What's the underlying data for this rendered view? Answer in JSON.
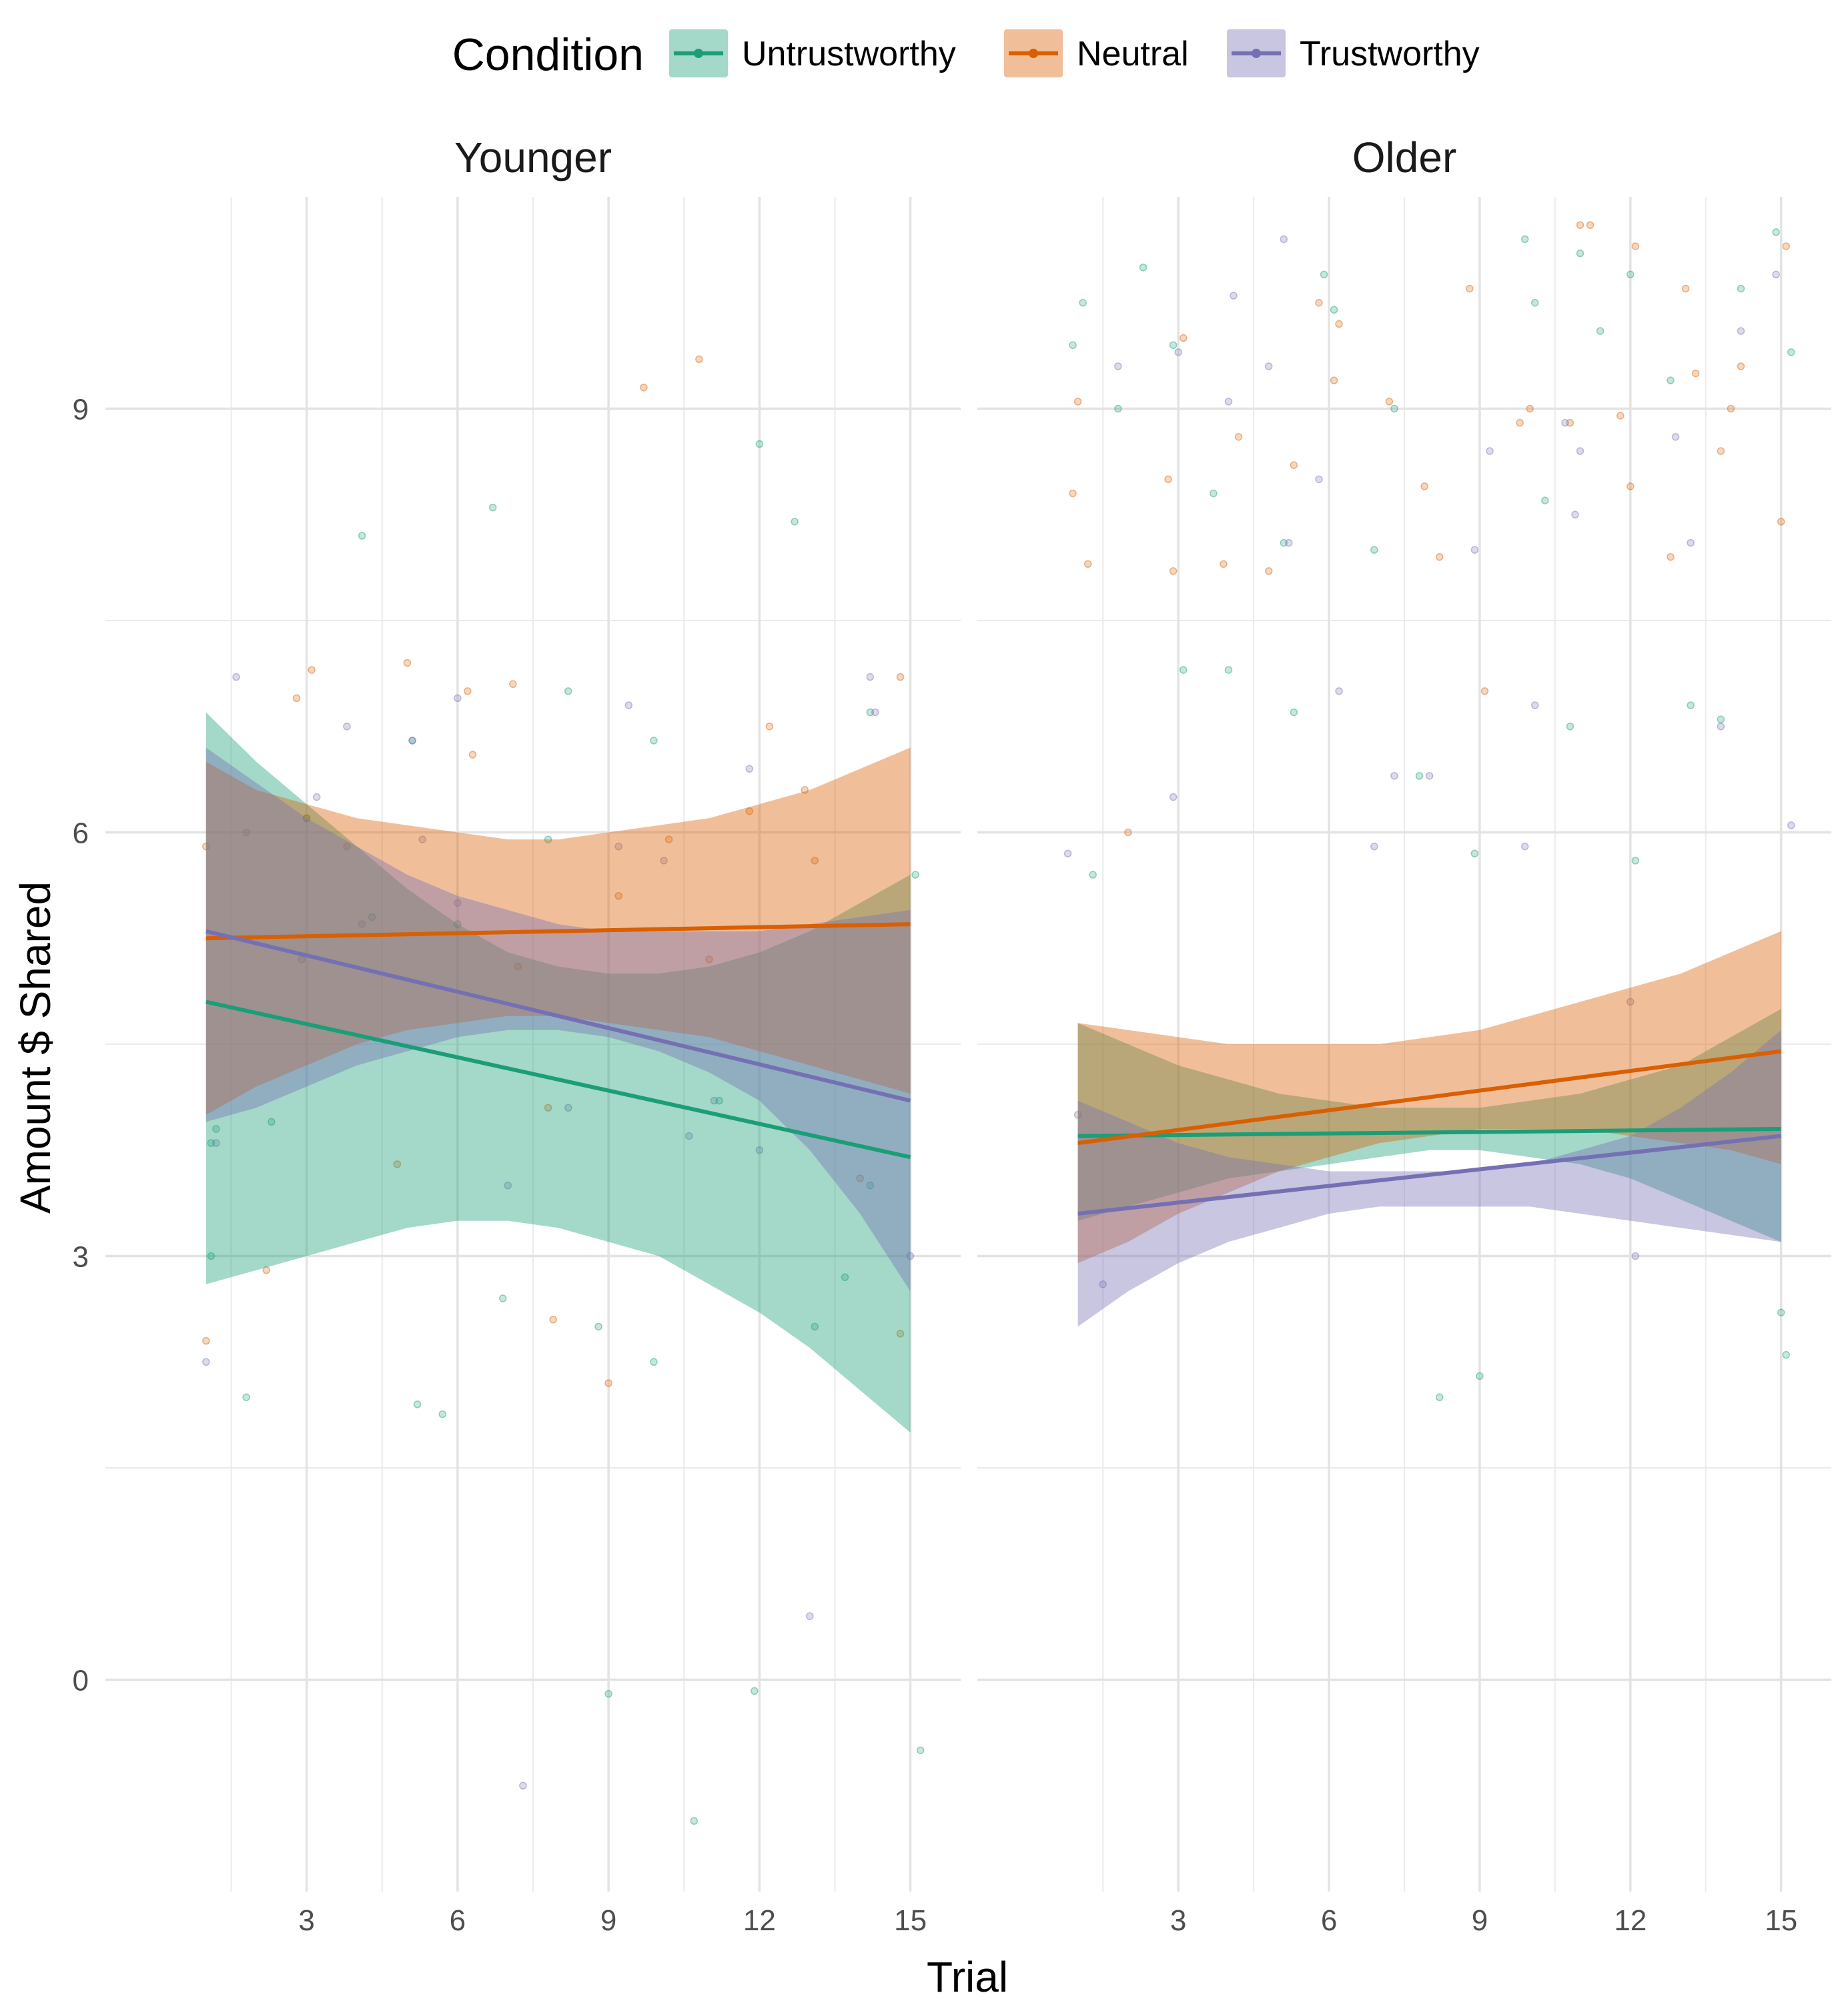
{
  "chart_data": {
    "type": "scatter",
    "xlabel": "Trial",
    "ylabel": "Amount $ Shared",
    "x_ticks": [
      3,
      6,
      9,
      12,
      15
    ],
    "y_ticks": [
      0,
      3,
      6,
      9
    ],
    "xlim": [
      -1.0,
      16.0
    ],
    "ylim": [
      -1.5,
      10.5
    ],
    "grid": true,
    "legend": {
      "title": "Condition",
      "position": "top",
      "entries": [
        {
          "name": "Untrustworthy",
          "color": "#1b9e77"
        },
        {
          "name": "Neutral",
          "color": "#d95f02"
        },
        {
          "name": "Trustworthy",
          "color": "#7570b3"
        }
      ]
    },
    "panels": [
      {
        "name": "Younger",
        "fits": [
          {
            "series": "Untrustworthy",
            "x": [
              1,
              15
            ],
            "y": [
              4.8,
              3.7
            ]
          },
          {
            "series": "Neutral",
            "x": [
              1,
              15
            ],
            "y": [
              5.25,
              5.35
            ]
          },
          {
            "series": "Trustworthy",
            "x": [
              1,
              15
            ],
            "y": [
              5.3,
              4.1
            ]
          }
        ],
        "bands": [
          {
            "series": "Untrustworthy",
            "x": [
              1,
              2,
              3,
              4,
              5,
              6,
              7,
              8,
              9,
              10,
              11,
              12,
              13,
              14,
              15
            ],
            "lower": [
              2.8,
              2.9,
              3.0,
              3.1,
              3.2,
              3.25,
              3.25,
              3.2,
              3.1,
              3.0,
              2.8,
              2.6,
              2.35,
              2.05,
              1.75
            ],
            "upper": [
              6.85,
              6.5,
              6.2,
              5.9,
              5.6,
              5.35,
              5.15,
              5.05,
              5.0,
              5.0,
              5.05,
              5.15,
              5.3,
              5.5,
              5.7
            ]
          },
          {
            "series": "Neutral",
            "x": [
              1,
              2,
              3,
              4,
              5,
              6,
              7,
              8,
              9,
              10,
              11,
              12,
              13,
              14,
              15
            ],
            "lower": [
              4.0,
              4.2,
              4.35,
              4.5,
              4.6,
              4.65,
              4.7,
              4.7,
              4.65,
              4.6,
              4.55,
              4.45,
              4.35,
              4.25,
              4.15
            ],
            "upper": [
              6.5,
              6.3,
              6.2,
              6.1,
              6.05,
              6.0,
              5.95,
              5.95,
              6.0,
              6.05,
              6.1,
              6.2,
              6.3,
              6.45,
              6.6
            ]
          },
          {
            "series": "Trustworthy",
            "x": [
              1,
              2,
              3,
              4,
              5,
              6,
              7,
              8,
              9,
              10,
              11,
              12,
              13,
              14,
              15
            ],
            "lower": [
              3.95,
              4.05,
              4.2,
              4.35,
              4.45,
              4.55,
              4.6,
              4.6,
              4.55,
              4.45,
              4.3,
              4.1,
              3.75,
              3.3,
              2.75
            ],
            "upper": [
              6.6,
              6.35,
              6.1,
              5.9,
              5.7,
              5.55,
              5.45,
              5.35,
              5.3,
              5.3,
              5.3,
              5.3,
              5.35,
              5.4,
              5.45
            ]
          }
        ],
        "points": [
          {
            "series": "Untrustworthy",
            "x": [
              1.1,
              1.1,
              1.2,
              1.8,
              2.3,
              3.0,
              4.1,
              4.3,
              5.1,
              5.2,
              5.7,
              6.0,
              6.7,
              6.9,
              7.8,
              8.2,
              8.8,
              9.0,
              9.9,
              9.9,
              10.7,
              11.2,
              11.9,
              12.0,
              12.7,
              13.1,
              13.7,
              14.2,
              14.2,
              15.1,
              15.2
            ],
            "y": [
              3.8,
              3.0,
              3.9,
              2.0,
              3.95,
              6.1,
              8.1,
              5.4,
              6.65,
              1.95,
              1.88,
              5.35,
              8.3,
              2.7,
              5.95,
              7.0,
              2.5,
              -0.1,
              6.65,
              2.25,
              -1.0,
              4.1,
              -0.08,
              8.75,
              8.2,
              2.5,
              2.85,
              3.5,
              6.85,
              5.7,
              -0.5
            ]
          },
          {
            "series": "Neutral",
            "x": [
              1.0,
              1.0,
              2.2,
              2.8,
              3.0,
              3.1,
              3.8,
              4.8,
              5.0,
              6.2,
              6.3,
              7.1,
              7.2,
              7.8,
              7.9,
              9.0,
              9.2,
              9.7,
              10.2,
              10.8,
              11.0,
              11.8,
              12.2,
              12.9,
              13.1,
              14.0,
              14.8,
              14.8
            ],
            "y": [
              2.4,
              5.9,
              2.9,
              6.95,
              6.1,
              7.15,
              5.9,
              3.65,
              7.2,
              7.0,
              6.55,
              7.05,
              5.05,
              4.05,
              2.55,
              2.1,
              5.55,
              9.15,
              5.95,
              9.35,
              5.1,
              6.15,
              6.75,
              6.3,
              5.8,
              3.55,
              7.1,
              2.45
            ]
          },
          {
            "series": "Trustworthy",
            "x": [
              1.0,
              1.2,
              1.6,
              1.8,
              2.9,
              3.2,
              3.8,
              4.1,
              5.1,
              5.3,
              6.0,
              6.0,
              7.0,
              7.3,
              8.2,
              9.2,
              9.4,
              10.1,
              10.6,
              11.1,
              11.8,
              12.0,
              13.0,
              14.2,
              14.3,
              15.0
            ],
            "y": [
              2.25,
              3.8,
              7.1,
              6.0,
              5.1,
              6.25,
              6.75,
              5.35,
              6.65,
              5.95,
              6.95,
              5.5,
              3.5,
              -0.75,
              4.05,
              5.9,
              6.9,
              5.8,
              3.85,
              4.1,
              6.45,
              3.75,
              0.45,
              7.1,
              6.85,
              3.0
            ]
          }
        ]
      },
      {
        "name": "Older",
        "fits": [
          {
            "series": "Untrustworthy",
            "x": [
              1,
              15
            ],
            "y": [
              3.85,
              3.9
            ]
          },
          {
            "series": "Neutral",
            "x": [
              1,
              15
            ],
            "y": [
              3.8,
              4.45
            ]
          },
          {
            "series": "Trustworthy",
            "x": [
              1,
              15
            ],
            "y": [
              3.3,
              3.85
            ]
          }
        ],
        "bands": [
          {
            "series": "Untrustworthy",
            "x": [
              1,
              2,
              3,
              4,
              5,
              6,
              7,
              8,
              9,
              10,
              11,
              12,
              13,
              14,
              15
            ],
            "lower": [
              3.25,
              3.35,
              3.45,
              3.55,
              3.6,
              3.65,
              3.7,
              3.75,
              3.75,
              3.7,
              3.65,
              3.55,
              3.4,
              3.25,
              3.1
            ],
            "upper": [
              4.65,
              4.5,
              4.35,
              4.25,
              4.15,
              4.1,
              4.05,
              4.05,
              4.05,
              4.1,
              4.15,
              4.25,
              4.35,
              4.55,
              4.75
            ]
          },
          {
            "series": "Neutral",
            "x": [
              1,
              2,
              3,
              4,
              5,
              6,
              7,
              8,
              9,
              10,
              11,
              12,
              13,
              14,
              15
            ],
            "lower": [
              2.95,
              3.1,
              3.3,
              3.45,
              3.6,
              3.7,
              3.8,
              3.85,
              3.9,
              3.9,
              3.9,
              3.85,
              3.8,
              3.75,
              3.65
            ],
            "upper": [
              4.65,
              4.6,
              4.55,
              4.5,
              4.5,
              4.5,
              4.5,
              4.55,
              4.6,
              4.7,
              4.8,
              4.9,
              5.0,
              5.15,
              5.3
            ]
          },
          {
            "series": "Trustworthy",
            "x": [
              1,
              2,
              3,
              4,
              5,
              6,
              7,
              8,
              9,
              10,
              11,
              12,
              13,
              14,
              15
            ],
            "lower": [
              2.5,
              2.75,
              2.95,
              3.1,
              3.2,
              3.3,
              3.35,
              3.35,
              3.35,
              3.35,
              3.3,
              3.25,
              3.2,
              3.15,
              3.1
            ],
            "upper": [
              4.1,
              3.95,
              3.8,
              3.7,
              3.65,
              3.6,
              3.6,
              3.6,
              3.6,
              3.65,
              3.75,
              3.85,
              4.05,
              4.3,
              4.6
            ]
          }
        ],
        "points": [
          {
            "series": "Untrustworthy",
            "x": [
              0.9,
              1.1,
              1.3,
              1.8,
              2.3,
              2.9,
              3.1,
              3.7,
              4.0,
              5.1,
              5.3,
              5.9,
              6.1,
              6.9,
              7.3,
              7.8,
              8.2,
              8.9,
              9.0,
              9.9,
              10.1,
              10.3,
              10.8,
              11.0,
              11.4,
              12.0,
              12.1,
              12.8,
              13.2,
              13.8,
              14.2,
              14.9,
              15.0,
              15.1,
              15.2
            ],
            "y": [
              9.45,
              9.75,
              5.7,
              9.0,
              10.0,
              9.45,
              7.15,
              8.4,
              7.15,
              8.05,
              6.85,
              9.95,
              9.7,
              8.0,
              9.0,
              6.4,
              2.0,
              5.85,
              2.15,
              10.2,
              9.75,
              8.35,
              6.75,
              10.1,
              9.55,
              9.95,
              5.8,
              9.2,
              6.9,
              6.8,
              9.85,
              10.25,
              2.6,
              2.3,
              9.4
            ]
          },
          {
            "series": "Neutral",
            "x": [
              0.9,
              1.0,
              1.2,
              2.0,
              2.8,
              2.9,
              3.1,
              3.9,
              4.2,
              4.8,
              5.3,
              5.8,
              6.1,
              6.2,
              7.2,
              7.9,
              8.2,
              8.8,
              9.1,
              9.8,
              10.0,
              10.8,
              11.0,
              11.2,
              11.8,
              12.0,
              12.1,
              12.8,
              13.1,
              13.3,
              13.8,
              14.0,
              14.2,
              15.0,
              15.1
            ],
            "y": [
              8.4,
              9.05,
              7.9,
              6.0,
              8.5,
              7.85,
              9.5,
              7.9,
              8.8,
              7.85,
              8.6,
              9.75,
              9.2,
              9.6,
              9.05,
              8.45,
              7.95,
              9.85,
              7.0,
              8.9,
              9.0,
              8.9,
              10.3,
              10.3,
              8.95,
              8.45,
              10.15,
              7.95,
              9.85,
              9.25,
              8.7,
              9.0,
              9.3,
              8.2,
              10.15
            ]
          },
          {
            "series": "Trustworthy",
            "x": [
              0.8,
              1.0,
              1.5,
              1.8,
              2.9,
              3.0,
              4.0,
              4.1,
              4.8,
              5.1,
              5.2,
              5.8,
              6.2,
              6.9,
              7.3,
              8.0,
              8.9,
              9.2,
              9.9,
              10.1,
              10.7,
              10.9,
              11.0,
              12.0,
              12.1,
              12.9,
              13.2,
              13.8,
              14.2,
              14.9,
              15.2
            ],
            "y": [
              5.85,
              4.0,
              2.8,
              9.3,
              6.25,
              9.4,
              9.05,
              9.8,
              9.3,
              10.2,
              8.05,
              8.5,
              7.0,
              5.9,
              6.4,
              6.4,
              8.0,
              8.7,
              5.9,
              6.9,
              8.9,
              8.25,
              8.7,
              4.8,
              3.0,
              8.8,
              8.05,
              6.75,
              9.55,
              9.95,
              6.05
            ]
          }
        ]
      }
    ]
  }
}
